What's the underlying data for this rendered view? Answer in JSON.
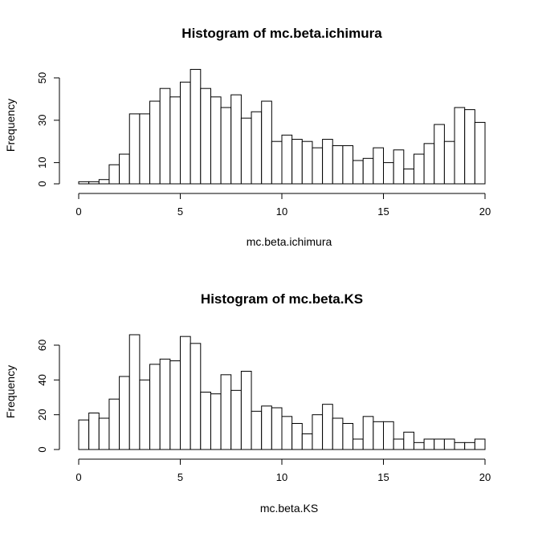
{
  "chart_data": [
    {
      "type": "bar",
      "title": "Histogram of mc.beta.ichimura",
      "xlabel": "mc.beta.ichimura",
      "ylabel": "Frequency",
      "bin_width": 0.5,
      "x_start": 0,
      "xlim": [
        0,
        20
      ],
      "ylim": [
        0,
        55
      ],
      "x_ticks": [
        0,
        5,
        10,
        15,
        20
      ],
      "y_ticks": [
        0,
        10,
        30,
        50
      ],
      "grid": false,
      "values": [
        1,
        1,
        2,
        9,
        14,
        33,
        33,
        39,
        45,
        41,
        48,
        54,
        45,
        41,
        36,
        42,
        31,
        34,
        39,
        20,
        23,
        21,
        20,
        17,
        21,
        18,
        18,
        11,
        12,
        17,
        10,
        16,
        7,
        14,
        19,
        28,
        20,
        36,
        35,
        29
      ]
    },
    {
      "type": "bar",
      "title": "Histogram of mc.beta.KS",
      "xlabel": "mc.beta.KS",
      "ylabel": "Frequency",
      "bin_width": 0.5,
      "x_start": 0,
      "xlim": [
        0,
        20
      ],
      "ylim": [
        0,
        66
      ],
      "x_ticks": [
        0,
        5,
        10,
        15,
        20
      ],
      "y_ticks": [
        0,
        20,
        40,
        60
      ],
      "grid": false,
      "values": [
        17,
        21,
        18,
        29,
        42,
        66,
        40,
        49,
        52,
        51,
        65,
        61,
        33,
        32,
        43,
        34,
        45,
        22,
        25,
        24,
        19,
        15,
        9,
        20,
        26,
        18,
        15,
        6,
        19,
        16,
        16,
        6,
        10,
        4,
        6,
        6,
        6,
        4,
        4,
        6
      ]
    }
  ]
}
